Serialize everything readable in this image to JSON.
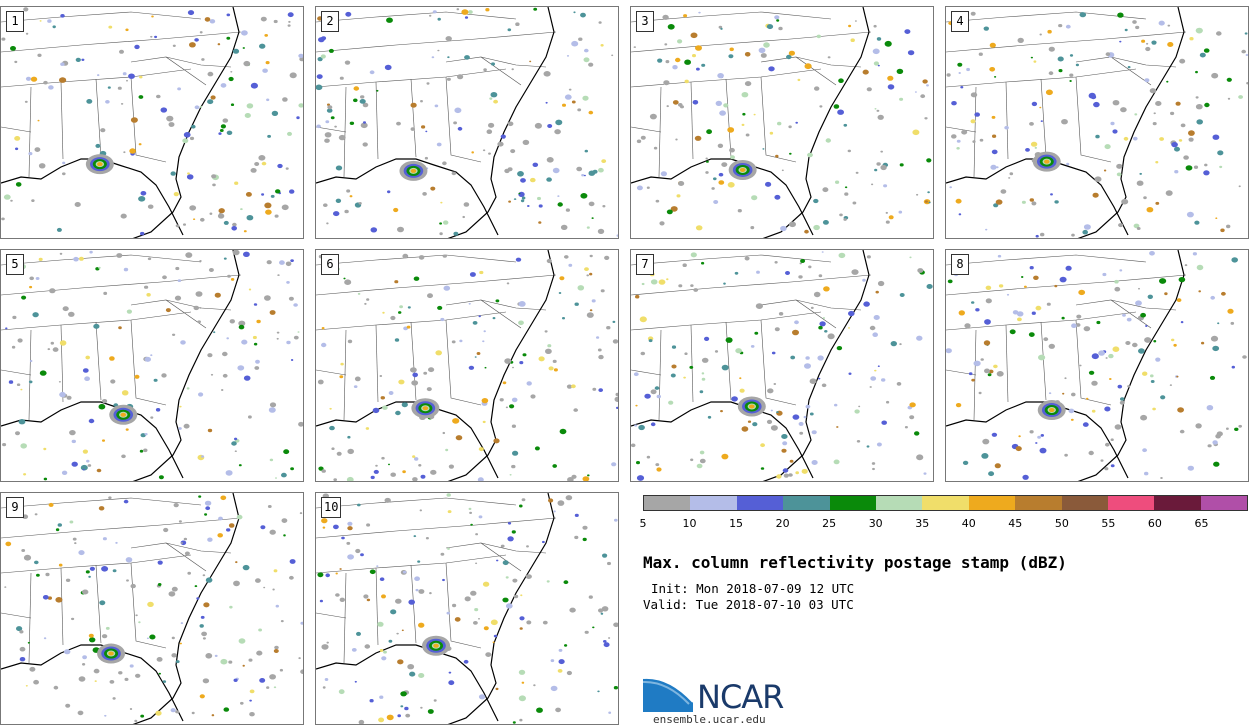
{
  "panels": [
    {
      "label": "1"
    },
    {
      "label": "2"
    },
    {
      "label": "3"
    },
    {
      "label": "4"
    },
    {
      "label": "5"
    },
    {
      "label": "6"
    },
    {
      "label": "7"
    },
    {
      "label": "8"
    },
    {
      "label": "9"
    },
    {
      "label": "10"
    }
  ],
  "colorbar": {
    "ticks": [
      "5",
      "10",
      "15",
      "20",
      "25",
      "30",
      "35",
      "40",
      "45",
      "50",
      "55",
      "60",
      "65"
    ],
    "colors": [
      "#a6a6a6",
      "#b4bde8",
      "#555fd6",
      "#4d9399",
      "#0a8a0a",
      "#b6dcb6",
      "#f0de6a",
      "#eeaa1e",
      "#b87d2e",
      "#8a5a3a",
      "#ee4d7d",
      "#6a1a3a",
      "#b04fa8"
    ]
  },
  "title": "Max. column reflectivity postage stamp (dBZ)",
  "init": "Init: Mon 2018-07-09 12 UTC",
  "valid": "Valid: Tue 2018-07-10 03 UTC",
  "logo": {
    "name": "NCAR",
    "url": "ensemble.ucar.edu"
  }
}
